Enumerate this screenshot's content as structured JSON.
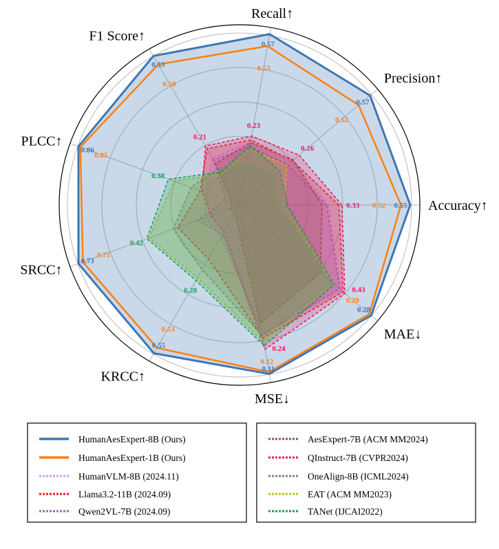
{
  "chart_data": {
    "type": "radar",
    "axes": [
      {
        "label": "Accuracy↑",
        "range": [
          0,
          0.581
        ]
      },
      {
        "label": "Precision↑",
        "range": [
          0,
          0.603
        ]
      },
      {
        "label": "Recall↑",
        "range": [
          0,
          0.592
        ]
      },
      {
        "label": "F1 Score↑",
        "range": [
          0,
          0.555
        ]
      },
      {
        "label": "PLCC↑",
        "range": [
          0,
          0.905
        ]
      },
      {
        "label": "SRCC↑",
        "range": [
          0,
          0.768
        ]
      },
      {
        "label": "KRCC↑",
        "range": [
          0,
          0.579
        ]
      },
      {
        "label": "MSE↓",
        "range": [
          1.01,
          0.064
        ]
      },
      {
        "label": "MAE↓",
        "range": [
          1.03,
          0.243
        ]
      }
    ],
    "grid": true,
    "legend_placement": "bottom",
    "series": [
      {
        "name": "HumanAesExpert-8B (Ours)",
        "color": "#3f76b3",
        "style": "solid",
        "values": [
          0.55,
          0.57,
          0.57,
          0.53,
          0.86,
          0.73,
          0.55,
          0.11,
          0.28
        ]
      },
      {
        "name": "HumanAesExpert-1B (Ours)",
        "color": "#ff7f0e",
        "style": "solid",
        "values": [
          0.52,
          0.52,
          0.53,
          0.5,
          0.85,
          0.71,
          0.53,
          0.12,
          0.29
        ]
      },
      {
        "name": "HumanVLM-8B (2024.11)",
        "color": "#cc99ff",
        "style": "dashed",
        "values": [
          0.286,
          0.225,
          0.21,
          0.167,
          0.18,
          0.13,
          0.12,
          0.32,
          0.45
        ]
      },
      {
        "name": "Llama3.2-11B (2024.09)",
        "color": "#e0202a",
        "style": "dashed",
        "values": [
          0.32,
          0.231,
          0.217,
          0.2,
          0.21,
          0.28,
          0.2,
          0.3,
          0.44
        ]
      },
      {
        "name": "Qwen2VL-7B (2024.09)",
        "color": "#9467bd",
        "style": "dashed",
        "values": [
          0.28,
          0.21,
          0.195,
          0.16,
          0.075,
          0.19,
          0.11,
          0.32,
          0.46
        ]
      },
      {
        "name": "AesExpert-7B (ACM MM2024)",
        "color": "#8c564b",
        "style": "dashed",
        "values": [
          0.266,
          0.235,
          0.208,
          0.147,
          0.04,
          0.04,
          0.03,
          0.38,
          0.57
        ]
      },
      {
        "name": "QInstruct-7B (CVPR2024)",
        "color": "#f0145a",
        "style": "dashed",
        "values": [
          0.33,
          0.26,
          0.23,
          0.21,
          0.2,
          0.13,
          0.1,
          0.24,
          0.43
        ]
      },
      {
        "name": "OneAlign-8B (ICML2024)",
        "color": "#7f7f7f",
        "style": "dashed",
        "values": [
          0.12,
          0.15,
          0.135,
          0.13,
          0.26,
          0.3,
          0.24,
          0.31,
          0.5
        ]
      },
      {
        "name": "EAT (ACM MM2023)",
        "color": "#bcbd22",
        "style": "dashed",
        "values": [
          0.144,
          0.206,
          0.186,
          0.11,
          0.35,
          0.41,
          0.27,
          0.28,
          0.5
        ]
      },
      {
        "name": "TANet (IJCAI2022)",
        "color": "#12a150",
        "style": "dashed",
        "values": [
          0.155,
          0.176,
          0.2,
          0.117,
          0.38,
          0.42,
          0.28,
          0.26,
          0.49
        ]
      }
    ],
    "data_labels": [
      {
        "series": 0,
        "axis": 0,
        "text": "0.55"
      },
      {
        "series": 0,
        "axis": 1,
        "text": "0.57"
      },
      {
        "series": 0,
        "axis": 2,
        "text": "0.57"
      },
      {
        "series": 0,
        "axis": 3,
        "text": "0.53"
      },
      {
        "series": 0,
        "axis": 4,
        "text": "0.86"
      },
      {
        "series": 0,
        "axis": 5,
        "text": "0.73"
      },
      {
        "series": 0,
        "axis": 6,
        "text": "0.55"
      },
      {
        "series": 0,
        "axis": 7,
        "text": "0.11"
      },
      {
        "series": 0,
        "axis": 8,
        "text": "0.28"
      },
      {
        "series": 1,
        "axis": 0,
        "text": "0.52"
      },
      {
        "series": 1,
        "axis": 1,
        "text": "0.52"
      },
      {
        "series": 1,
        "axis": 2,
        "text": "0.53"
      },
      {
        "series": 1,
        "axis": 3,
        "text": "0.50"
      },
      {
        "series": 1,
        "axis": 4,
        "text": "0.85"
      },
      {
        "series": 1,
        "axis": 5,
        "text": "0.71"
      },
      {
        "series": 1,
        "axis": 6,
        "text": "0.53"
      },
      {
        "series": 1,
        "axis": 7,
        "text": "0.12"
      },
      {
        "series": 1,
        "axis": 8,
        "text": "0.29"
      },
      {
        "series": 6,
        "axis": 0,
        "text": "0.33"
      },
      {
        "series": 6,
        "axis": 1,
        "text": "0.26"
      },
      {
        "series": 6,
        "axis": 2,
        "text": "0.23"
      },
      {
        "series": 6,
        "axis": 3,
        "text": "0.21"
      },
      {
        "series": 6,
        "axis": 7,
        "text": "0.24"
      },
      {
        "series": 6,
        "axis": 8,
        "text": "0.43"
      },
      {
        "series": 9,
        "axis": 4,
        "text": "0.38"
      },
      {
        "series": 9,
        "axis": 5,
        "text": "0.42"
      },
      {
        "series": 9,
        "axis": 6,
        "text": "0.28"
      }
    ]
  }
}
